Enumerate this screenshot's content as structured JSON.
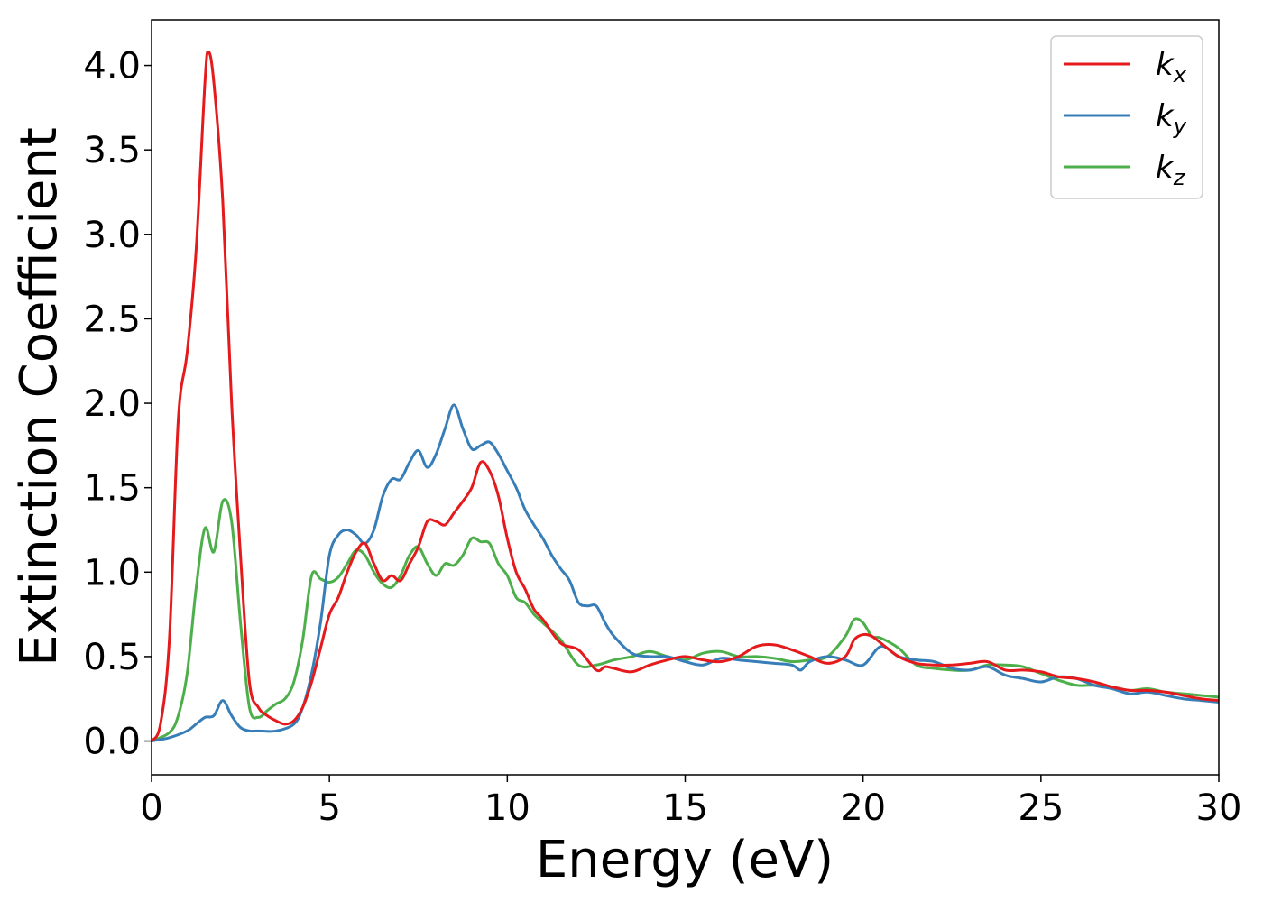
{
  "chart_data": {
    "type": "line",
    "xlabel": "Energy (eV)",
    "ylabel": "Extinction Coefficient",
    "xlim": [
      0,
      30
    ],
    "ylim": [
      -0.2,
      4.27
    ],
    "xticks": [
      0,
      5,
      10,
      15,
      20,
      25,
      30
    ],
    "yticks": [
      0.0,
      0.5,
      1.0,
      1.5,
      2.0,
      2.5,
      3.0,
      3.5,
      4.0
    ],
    "xtick_labels": [
      "0",
      "5",
      "10",
      "15",
      "20",
      "25",
      "30"
    ],
    "ytick_labels": [
      "0.0",
      "0.5",
      "1.0",
      "1.5",
      "2.0",
      "2.5",
      "3.0",
      "3.5",
      "4.0"
    ],
    "grid": false,
    "legend_position": "top-right",
    "series": [
      {
        "name": "k",
        "subscript": "x",
        "color": "#e41a1c",
        "x": [
          0,
          0.25,
          0.5,
          0.75,
          1.0,
          1.25,
          1.5,
          1.6,
          1.75,
          2.0,
          2.25,
          2.5,
          2.75,
          3.0,
          3.25,
          3.5,
          3.75,
          4.0,
          4.25,
          4.5,
          4.75,
          5.0,
          5.25,
          5.5,
          5.75,
          6.0,
          6.25,
          6.5,
          6.75,
          7.0,
          7.25,
          7.5,
          7.75,
          8.0,
          8.25,
          8.5,
          8.75,
          9.0,
          9.25,
          9.5,
          9.75,
          10.0,
          10.25,
          10.5,
          10.75,
          11.0,
          11.5,
          12.0,
          12.5,
          12.75,
          13.0,
          13.5,
          14.0,
          14.5,
          15.0,
          15.5,
          16.0,
          16.5,
          17.0,
          17.5,
          18.0,
          18.5,
          19.0,
          19.5,
          19.75,
          20.0,
          20.25,
          20.5,
          21.0,
          21.5,
          22.0,
          22.5,
          23.0,
          23.5,
          24.0,
          24.5,
          25.0,
          25.5,
          26.0,
          26.5,
          27.0,
          27.5,
          28.0,
          28.5,
          29.0,
          29.5,
          30.0
        ],
        "values": [
          0.0,
          0.1,
          0.6,
          1.9,
          2.3,
          2.9,
          3.9,
          4.08,
          3.9,
          3.2,
          2.0,
          1.1,
          0.35,
          0.2,
          0.15,
          0.12,
          0.1,
          0.12,
          0.2,
          0.35,
          0.55,
          0.75,
          0.85,
          1.0,
          1.12,
          1.17,
          1.05,
          0.95,
          0.98,
          0.95,
          1.05,
          1.15,
          1.3,
          1.3,
          1.28,
          1.35,
          1.42,
          1.5,
          1.65,
          1.6,
          1.45,
          1.2,
          1.0,
          0.9,
          0.78,
          0.72,
          0.58,
          0.54,
          0.42,
          0.44,
          0.43,
          0.41,
          0.45,
          0.48,
          0.5,
          0.48,
          0.47,
          0.5,
          0.56,
          0.57,
          0.54,
          0.5,
          0.46,
          0.5,
          0.6,
          0.63,
          0.62,
          0.58,
          0.5,
          0.46,
          0.45,
          0.45,
          0.46,
          0.47,
          0.42,
          0.42,
          0.41,
          0.38,
          0.37,
          0.35,
          0.32,
          0.3,
          0.3,
          0.29,
          0.27,
          0.25,
          0.24
        ]
      },
      {
        "name": "k",
        "subscript": "y",
        "color": "#377eb8",
        "x": [
          0,
          0.5,
          1.0,
          1.25,
          1.5,
          1.75,
          2.0,
          2.25,
          2.5,
          2.75,
          3.0,
          3.5,
          4.0,
          4.25,
          4.5,
          4.75,
          5.0,
          5.25,
          5.5,
          5.75,
          6.0,
          6.25,
          6.5,
          6.75,
          7.0,
          7.25,
          7.5,
          7.75,
          8.0,
          8.25,
          8.5,
          8.75,
          9.0,
          9.25,
          9.5,
          9.75,
          10.0,
          10.25,
          10.5,
          10.75,
          11.0,
          11.25,
          11.5,
          11.75,
          12.0,
          12.25,
          12.5,
          12.75,
          13.0,
          13.5,
          14.0,
          14.5,
          15.0,
          15.5,
          16.0,
          16.5,
          17.0,
          17.5,
          18.0,
          18.25,
          18.5,
          19.0,
          19.5,
          20.0,
          20.5,
          21.0,
          21.5,
          22.0,
          22.5,
          23.0,
          23.5,
          24.0,
          24.5,
          25.0,
          25.5,
          26.0,
          26.5,
          27.0,
          27.5,
          28.0,
          28.5,
          29.0,
          29.5,
          30.0
        ],
        "values": [
          0.0,
          0.02,
          0.06,
          0.1,
          0.14,
          0.15,
          0.24,
          0.15,
          0.08,
          0.06,
          0.06,
          0.06,
          0.1,
          0.2,
          0.4,
          0.7,
          1.1,
          1.22,
          1.25,
          1.22,
          1.17,
          1.25,
          1.45,
          1.55,
          1.55,
          1.65,
          1.72,
          1.62,
          1.7,
          1.85,
          1.99,
          1.85,
          1.73,
          1.75,
          1.77,
          1.7,
          1.6,
          1.5,
          1.37,
          1.28,
          1.2,
          1.1,
          1.02,
          0.95,
          0.82,
          0.8,
          0.8,
          0.7,
          0.62,
          0.52,
          0.5,
          0.5,
          0.47,
          0.45,
          0.49,
          0.48,
          0.47,
          0.46,
          0.45,
          0.42,
          0.47,
          0.5,
          0.48,
          0.45,
          0.56,
          0.5,
          0.48,
          0.47,
          0.43,
          0.42,
          0.44,
          0.39,
          0.37,
          0.35,
          0.38,
          0.37,
          0.33,
          0.31,
          0.28,
          0.29,
          0.27,
          0.25,
          0.24,
          0.23
        ]
      },
      {
        "name": "k",
        "subscript": "z",
        "color": "#4daf4a",
        "x": [
          0,
          0.5,
          0.75,
          1.0,
          1.25,
          1.5,
          1.75,
          2.0,
          2.25,
          2.5,
          2.75,
          3.0,
          3.25,
          3.5,
          3.75,
          4.0,
          4.25,
          4.5,
          4.75,
          5.0,
          5.25,
          5.5,
          5.75,
          6.0,
          6.25,
          6.5,
          6.75,
          7.0,
          7.25,
          7.5,
          7.75,
          8.0,
          8.25,
          8.5,
          8.75,
          9.0,
          9.25,
          9.5,
          9.75,
          10.0,
          10.25,
          10.5,
          10.75,
          11.0,
          11.5,
          12.0,
          12.5,
          13.0,
          13.5,
          14.0,
          14.5,
          15.0,
          15.5,
          16.0,
          16.5,
          17.0,
          17.5,
          18.0,
          18.5,
          19.0,
          19.5,
          19.75,
          20.0,
          20.25,
          20.5,
          21.0,
          21.5,
          22.0,
          22.5,
          23.0,
          23.5,
          24.0,
          24.5,
          25.0,
          25.5,
          26.0,
          26.5,
          27.0,
          27.5,
          28.0,
          28.5,
          29.0,
          29.5,
          30.0
        ],
        "values": [
          0.0,
          0.05,
          0.15,
          0.4,
          0.9,
          1.26,
          1.12,
          1.42,
          1.3,
          0.7,
          0.2,
          0.14,
          0.18,
          0.22,
          0.25,
          0.35,
          0.6,
          0.98,
          0.96,
          0.94,
          0.97,
          1.05,
          1.13,
          1.1,
          1.0,
          0.93,
          0.91,
          0.98,
          1.1,
          1.15,
          1.05,
          0.98,
          1.05,
          1.04,
          1.1,
          1.2,
          1.18,
          1.17,
          1.05,
          0.98,
          0.85,
          0.82,
          0.75,
          0.7,
          0.6,
          0.45,
          0.45,
          0.48,
          0.5,
          0.53,
          0.5,
          0.48,
          0.52,
          0.53,
          0.5,
          0.5,
          0.49,
          0.47,
          0.48,
          0.5,
          0.62,
          0.72,
          0.7,
          0.62,
          0.61,
          0.55,
          0.45,
          0.43,
          0.42,
          0.42,
          0.45,
          0.45,
          0.44,
          0.4,
          0.36,
          0.33,
          0.33,
          0.32,
          0.3,
          0.31,
          0.29,
          0.28,
          0.27,
          0.26
        ]
      }
    ]
  }
}
